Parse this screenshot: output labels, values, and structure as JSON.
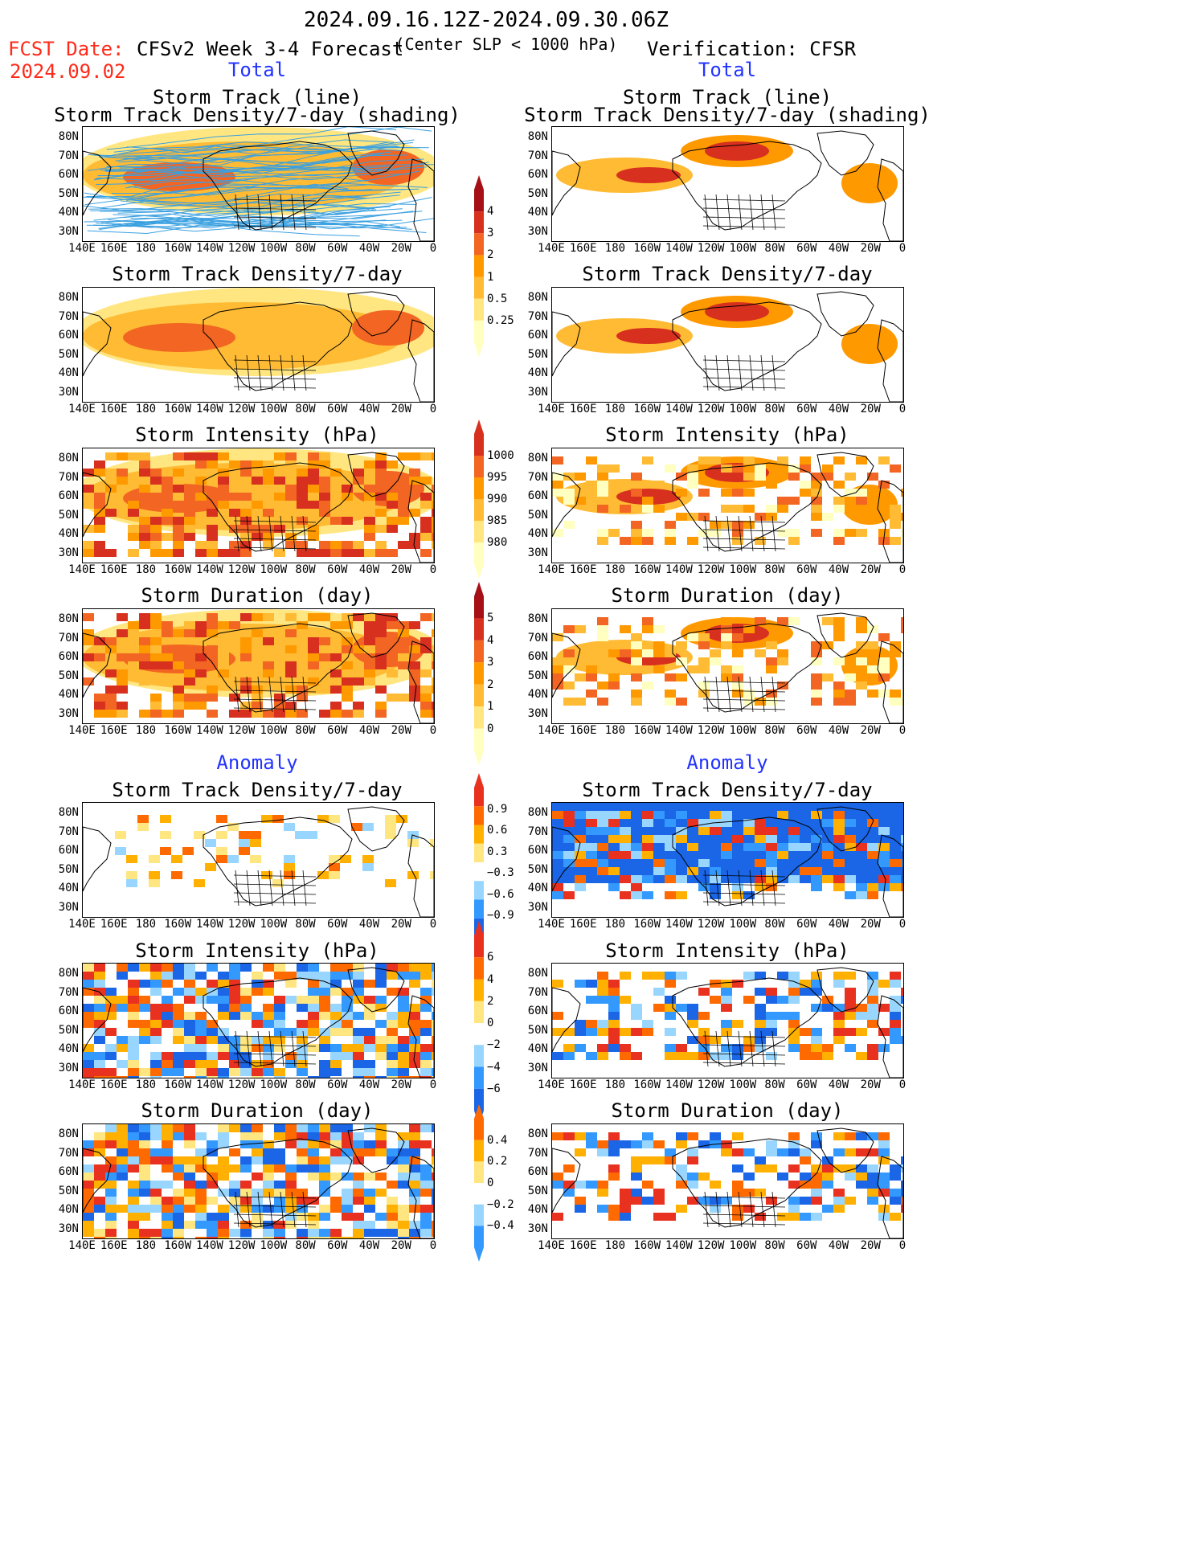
{
  "header": {
    "date_range": "2024.09.16.12Z-2024.09.30.06Z",
    "fcst_label": "FCST Date:",
    "fcst_date": "2024.09.02",
    "model_title": "CFSv2 Week 3-4 Forecast",
    "criteria": "(Center SLP < 1000 hPa)",
    "verification": "Verification: CFSR"
  },
  "sections": {
    "total_left": "Total",
    "total_right": "Total",
    "anomaly_left": "Anomaly",
    "anomaly_right": "Anomaly"
  },
  "panel_titles": {
    "track_line": "Storm Track (line)",
    "track_shading": "Storm Track Density/7-day (shading)",
    "density": "Storm Track Density/7-day",
    "intensity": "Storm Intensity (hPa)",
    "duration": "Storm Duration (day)"
  },
  "axes": {
    "lat_labels": [
      "80N",
      "70N",
      "60N",
      "50N",
      "40N",
      "30N"
    ],
    "lon_labels": [
      "140E",
      "160E",
      "180",
      "160W",
      "140W",
      "120W",
      "100W",
      "80W",
      "60W",
      "40W",
      "20W",
      "0"
    ]
  },
  "colorbars": {
    "density_total": [
      "4",
      "3",
      "2",
      "1",
      "0.5",
      "0.25"
    ],
    "intensity_total": [
      "1000",
      "995",
      "990",
      "985",
      "980"
    ],
    "duration_total": [
      "5",
      "4",
      "3",
      "2",
      "1",
      "0"
    ],
    "density_anom": [
      "0.9",
      "0.6",
      "0.3",
      "−0.3",
      "−0.6",
      "−0.9"
    ],
    "intensity_anom": [
      "6",
      "4",
      "2",
      "0",
      "−2",
      "−4",
      "−6"
    ],
    "duration_anom": [
      "0.4",
      "0.2",
      "0",
      "−0.2",
      "−0.4"
    ]
  },
  "colors": {
    "total_scale": [
      "#ffffc0",
      "#ffe680",
      "#ffbb33",
      "#ff9900",
      "#f26522",
      "#d7301f",
      "#a50f15"
    ],
    "anom_scale": [
      "#1a66e6",
      "#3399ff",
      "#99d6ff",
      "#ffffff",
      "#ffe680",
      "#ffb000",
      "#ff6a00",
      "#e8321f"
    ]
  }
}
